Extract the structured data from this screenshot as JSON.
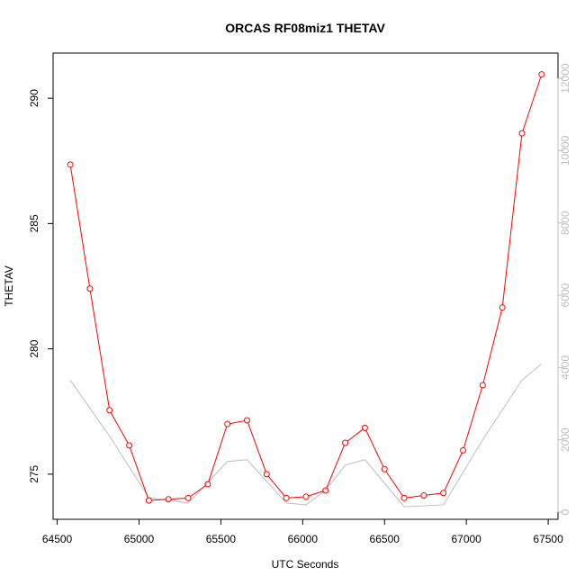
{
  "chart_data": {
    "type": "line",
    "title": "ORCAS RF08miz1 THETAV",
    "xlabel": "UTC Seconds",
    "ylabel": "THETAV",
    "y2label": "",
    "xlim": [
      64475,
      67560
    ],
    "ylim": [
      273.2,
      291.8
    ],
    "y2lim": [
      -200,
      12700
    ],
    "xticks": [
      64500,
      65000,
      65500,
      66000,
      66500,
      67000,
      67500
    ],
    "yticks": [
      275,
      280,
      285,
      290
    ],
    "y2ticks": [
      0,
      2000,
      4000,
      6000,
      8000,
      10000,
      12000
    ],
    "grid": false,
    "series": [
      {
        "axis": "left",
        "color": "#ff0000",
        "marker": "open-circle",
        "x": [
          64580,
          64700,
          64820,
          64940,
          65060,
          65180,
          65300,
          65420,
          65540,
          65660,
          65780,
          65900,
          66020,
          66140,
          66260,
          66380,
          66500,
          66620,
          66740,
          66860,
          66980,
          67100,
          67220,
          67340,
          67460
        ],
        "values": [
          287.35,
          282.4,
          277.55,
          276.15,
          273.95,
          274.0,
          274.05,
          274.6,
          277.0,
          277.15,
          275.0,
          274.05,
          274.1,
          274.35,
          276.25,
          276.85,
          275.2,
          274.05,
          274.15,
          274.25,
          275.95,
          278.55,
          281.65,
          288.6,
          290.95
        ]
      },
      {
        "axis": "right",
        "color": "#bebebe",
        "marker": "none",
        "x": [
          64580,
          64820,
          65060,
          65300,
          65540,
          65660,
          65900,
          66020,
          66140,
          66260,
          66380,
          66620,
          66860,
          67100,
          67340,
          67460
        ],
        "values": [
          3650,
          2100,
          400,
          250,
          1400,
          1450,
          250,
          200,
          600,
          1300,
          1450,
          150,
          200,
          2000,
          3650,
          4100
        ]
      }
    ]
  }
}
